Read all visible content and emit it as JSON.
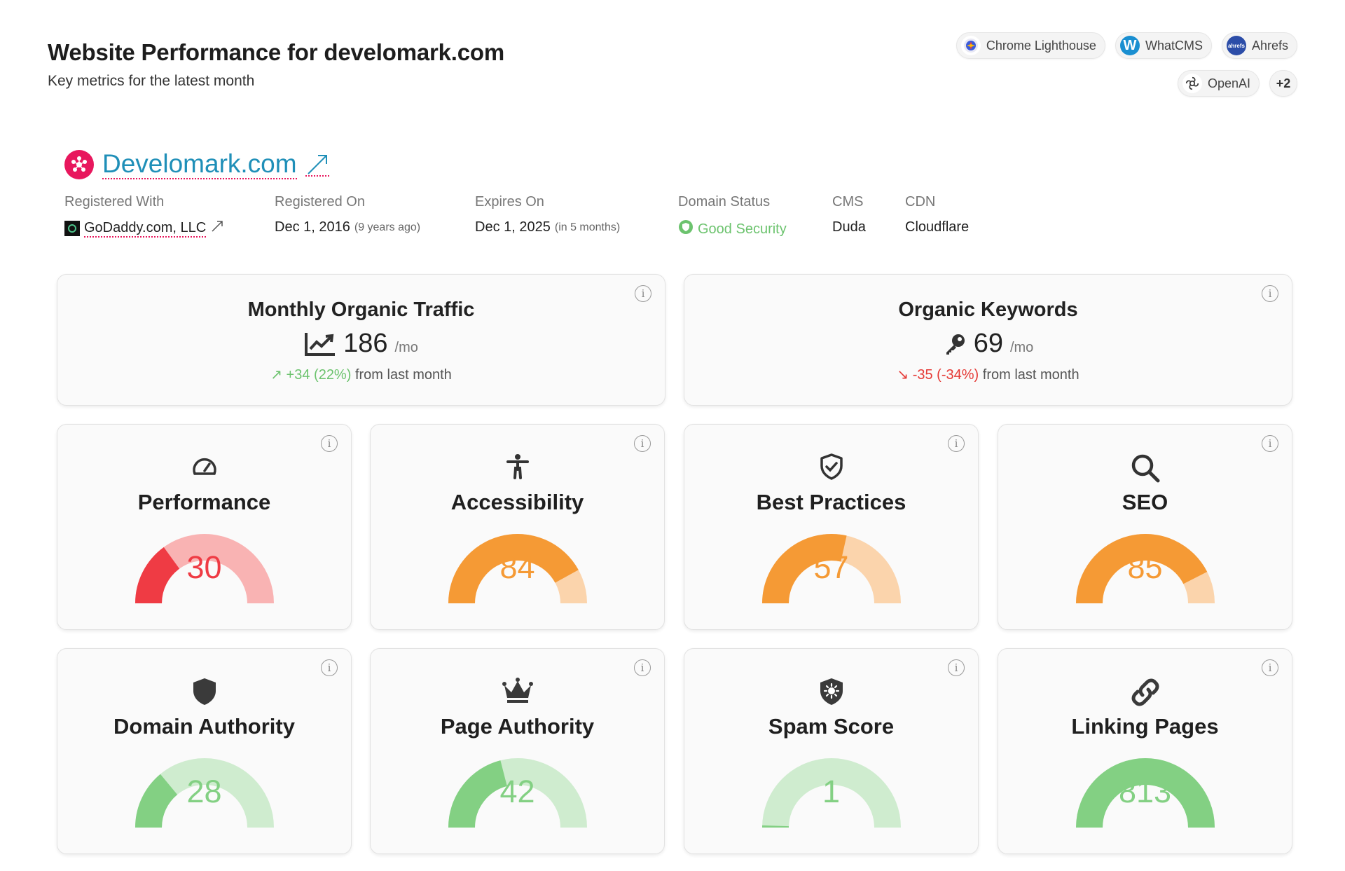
{
  "header": {
    "title": "Website Performance for develomark.com",
    "subtitle": "Key metrics for the latest month"
  },
  "sources": [
    {
      "label": "Chrome Lighthouse",
      "icon": "lighthouse-icon",
      "color": "#ffffff"
    },
    {
      "label": "WhatCMS",
      "icon": "whatcms-icon",
      "color": "#1a8fd1"
    },
    {
      "label": "Ahrefs",
      "icon": "ahrefs-icon",
      "color": "#2c4da8"
    },
    {
      "label": "OpenAI",
      "icon": "openai-icon",
      "color": "#ffffff"
    }
  ],
  "more_sources": "+2",
  "domain": {
    "name": "Develomark.com",
    "brand_color": "#e8175d",
    "registered_with_label": "Registered With",
    "registrar": "GoDaddy.com, LLC",
    "registered_on_label": "Registered On",
    "registered_on": "Dec 1, 2016",
    "registered_ago": "(9 years ago)",
    "expires_on_label": "Expires On",
    "expires_on": "Dec 1, 2025",
    "expires_in": "(in 5 months)",
    "status_label": "Domain Status",
    "status": "Good Security",
    "cms_label": "CMS",
    "cms": "Duda",
    "cdn_label": "CDN",
    "cdn": "Cloudflare"
  },
  "traffic": {
    "title": "Monthly Organic Traffic",
    "value": "186",
    "unit": "/mo",
    "change": "+34 (22%)",
    "change_suffix": "from last month"
  },
  "keywords": {
    "title": "Organic Keywords",
    "value": "69",
    "unit": "/mo",
    "change": "-35 (-34%)",
    "change_suffix": "from last month"
  },
  "gauges": [
    {
      "title": "Performance",
      "icon": "speedometer-icon",
      "value": 30,
      "display": "30",
      "fill": 0.3,
      "color": "#ef3b44",
      "track": "#f9b3b3"
    },
    {
      "title": "Accessibility",
      "icon": "accessibility-icon",
      "value": 84,
      "display": "84",
      "fill": 0.84,
      "color": "#f59a35",
      "track": "#fbd4ac"
    },
    {
      "title": "Best Practices",
      "icon": "shield-check-icon",
      "value": 57,
      "display": "57",
      "fill": 0.57,
      "color": "#f59a35",
      "track": "#fbd4ac"
    },
    {
      "title": "SEO",
      "icon": "search-icon",
      "value": 85,
      "display": "85",
      "fill": 0.85,
      "color": "#f59a35",
      "track": "#fbd4ac"
    },
    {
      "title": "Domain Authority",
      "icon": "shield-icon",
      "value": 28,
      "display": "28",
      "fill": 0.28,
      "color": "#83d083",
      "track": "#cfeccf"
    },
    {
      "title": "Page Authority",
      "icon": "crown-icon",
      "value": 42,
      "display": "42",
      "fill": 0.42,
      "color": "#83d083",
      "track": "#cfeccf"
    },
    {
      "title": "Spam Score",
      "icon": "shield-virus-icon",
      "value": 1,
      "display": "1",
      "fill": 0.01,
      "color": "#83d083",
      "track": "#cfeccf"
    },
    {
      "title": "Linking Pages",
      "icon": "link-icon",
      "value": 813,
      "display": "813",
      "fill": 1.0,
      "color": "#83d083",
      "track": "#cfeccf"
    }
  ]
}
